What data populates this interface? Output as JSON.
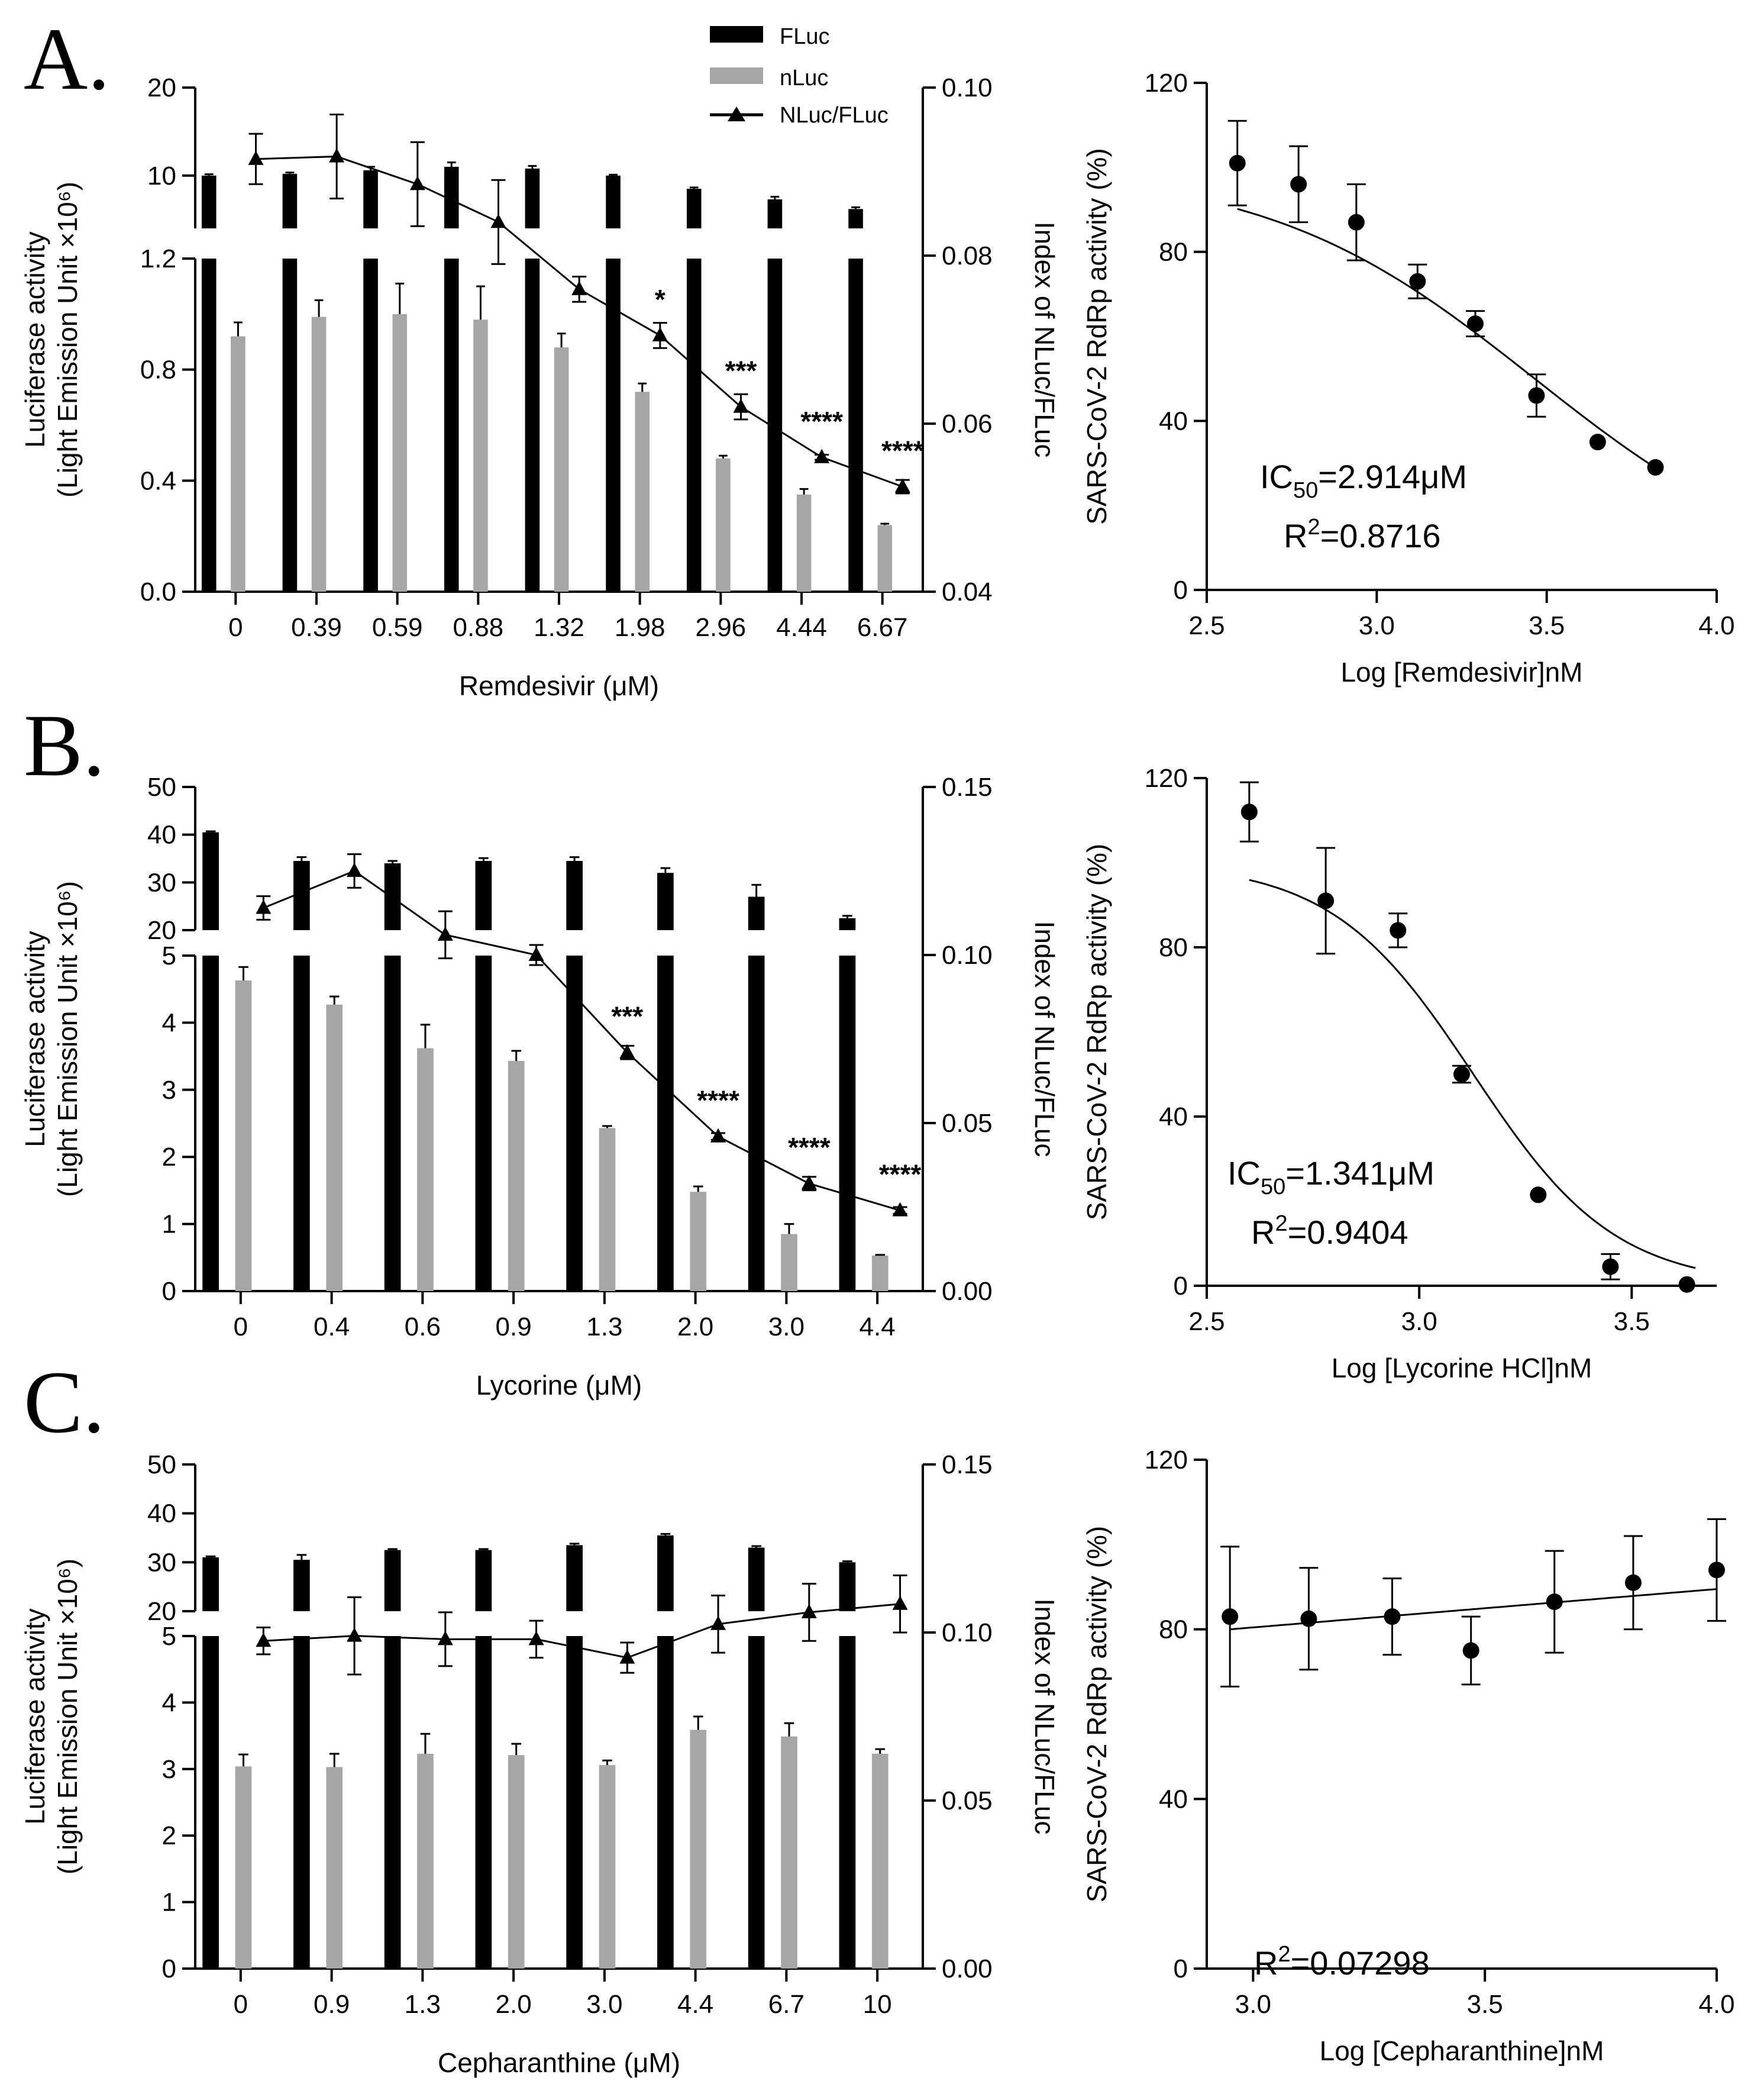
{
  "chart_data": [
    {
      "panel": "A.",
      "type": "bar",
      "xlabel": "Remdesivir (μM)",
      "categories": [
        "0",
        "0.39",
        "0.59",
        "0.88",
        "1.32",
        "1.98",
        "2.96",
        "4.44",
        "6.67"
      ],
      "ylabel_left": [
        "Luciferase activity",
        "(Light Emission Unit ×10⁶)"
      ],
      "ylabel_right": "Index of NLuc/FLuc",
      "y_lower": {
        "ticks": [
          0.0,
          0.4,
          0.8,
          1.2
        ],
        "tick_labels": [
          "0.0",
          "0.4",
          "0.8",
          "1.2"
        ],
        "ylim": [
          0,
          1.2
        ]
      },
      "y_upper": {
        "ticks": [
          10,
          20
        ],
        "tick_labels": [
          "10",
          "20"
        ],
        "ylim": [
          4,
          20
        ]
      },
      "y_right": {
        "ticks": [
          0.04,
          0.06,
          0.08,
          0.1
        ],
        "tick_labels": [
          "0.04",
          "0.06",
          "0.08",
          "0.10"
        ],
        "ylim": [
          0.04,
          0.1
        ]
      },
      "series": [
        {
          "name": "FLuc",
          "kind": "bar",
          "color": "#000000",
          "values": [
            10.0,
            10.2,
            10.6,
            11.0,
            10.8,
            10.0,
            8.5,
            7.3,
            6.2
          ],
          "errors": [
            0.15,
            0.15,
            0.4,
            0.5,
            0.3,
            0.1,
            0.15,
            0.3,
            0.2
          ]
        },
        {
          "name": "nLuc",
          "kind": "bar",
          "color": "#a6a6a6",
          "values": [
            0.92,
            0.99,
            1.0,
            0.98,
            0.88,
            0.72,
            0.48,
            0.35,
            0.24
          ],
          "errors": [
            0.05,
            0.06,
            0.11,
            0.12,
            0.05,
            0.03,
            0.01,
            0.02,
            0.005
          ]
        },
        {
          "name": "NLuc/FLuc",
          "kind": "line",
          "color": "#000000",
          "values": [
            0.0915,
            0.0918,
            0.0885,
            0.084,
            0.076,
            0.0705,
            0.062,
            0.056,
            0.0525
          ],
          "errors": [
            0.003,
            0.005,
            0.005,
            0.005,
            0.0015,
            0.0015,
            0.0015,
            0.0003,
            0.0008
          ]
        }
      ],
      "significance": [
        {
          "category": "1.98",
          "label": "*"
        },
        {
          "category": "2.96",
          "label": "***"
        },
        {
          "category": "4.44",
          "label": "****"
        },
        {
          "category": "6.67",
          "label": "****"
        }
      ],
      "legend": [
        "FLuc",
        "nLuc",
        "NLuc/FLuc"
      ]
    },
    {
      "panel": "A.",
      "type": "scatter",
      "xlabel": "Log [Remdesivir]nM",
      "ylabel": "SARS-CoV-2 RdRp activity (%)",
      "xlim": [
        2.5,
        4.0
      ],
      "ylim": [
        0,
        120
      ],
      "x_ticks": [
        "2.5",
        "3.0",
        "3.5",
        "4.0"
      ],
      "y_ticks": [
        "0",
        "40",
        "80",
        "120"
      ],
      "x": [
        2.59,
        2.77,
        2.94,
        3.12,
        3.29,
        3.47,
        3.65,
        3.82
      ],
      "y": [
        101,
        96,
        87,
        73,
        63,
        46,
        35,
        29
      ],
      "errors": [
        10,
        9,
        9,
        4,
        3,
        5,
        0.5,
        0.5
      ],
      "fit": {
        "top": 100,
        "bottom": 0,
        "logIC50": 3.4645,
        "hill": 1.1,
        "xrange": [
          2.59,
          3.82
        ]
      },
      "annotation_ic50": {
        "prefix": "IC",
        "sub": "50",
        "value": "=2.914μM"
      },
      "annotation_r2": {
        "prefix": "R",
        "sup": "2",
        "value": "=0.8716"
      }
    },
    {
      "panel": "B.",
      "type": "bar",
      "xlabel": "Lycorine (μM)",
      "categories": [
        "0",
        "0.4",
        "0.6",
        "0.9",
        "1.3",
        "2.0",
        "3.0",
        "4.4"
      ],
      "ylabel_left": [
        "Luciferase activity",
        "(Light Emission Unit ×10⁶)"
      ],
      "ylabel_right": "Index of NLuc/FLuc",
      "y_lower": {
        "ticks": [
          0,
          1,
          2,
          3,
          4,
          5
        ],
        "tick_labels": [
          "0",
          "1",
          "2",
          "3",
          "4",
          "5"
        ],
        "ylim": [
          0,
          5
        ]
      },
      "y_upper": {
        "ticks": [
          20,
          30,
          40,
          50
        ],
        "tick_labels": [
          "20",
          "30",
          "40",
          "50"
        ],
        "ylim": [
          20,
          50
        ]
      },
      "y_right": {
        "ticks": [
          0.0,
          0.05,
          0.1,
          0.15
        ],
        "tick_labels": [
          "0.00",
          "0.05",
          "0.10",
          "0.15"
        ],
        "ylim": [
          0,
          0.15
        ]
      },
      "series": [
        {
          "name": "FLuc",
          "kind": "bar",
          "color": "#000000",
          "values": [
            40.5,
            34.5,
            34.0,
            34.5,
            34.5,
            32.0,
            27.0,
            22.5
          ],
          "errors": [
            0.2,
            0.8,
            0.5,
            0.6,
            0.8,
            1.0,
            2.5,
            0.5
          ]
        },
        {
          "name": "nLuc",
          "kind": "bar",
          "color": "#a6a6a6",
          "values": [
            4.63,
            4.27,
            3.62,
            3.43,
            2.43,
            1.48,
            0.85,
            0.53
          ],
          "errors": [
            0.2,
            0.12,
            0.35,
            0.15,
            0.03,
            0.08,
            0.15,
            0.01
          ]
        },
        {
          "name": "NLuc/FLuc",
          "kind": "line",
          "color": "#000000",
          "values": [
            0.114,
            0.125,
            0.106,
            0.1,
            0.071,
            0.046,
            0.032,
            0.024
          ],
          "errors": [
            0.0035,
            0.005,
            0.007,
            0.003,
            0.002,
            0.001,
            0.002,
            0.001
          ]
        }
      ],
      "significance": [
        {
          "category": "1.3",
          "label": "***"
        },
        {
          "category": "2.0",
          "label": "****"
        },
        {
          "category": "3.0",
          "label": "****"
        },
        {
          "category": "4.4",
          "label": "****"
        }
      ]
    },
    {
      "panel": "B.",
      "type": "scatter",
      "xlabel": "Log [Lycorine HCl]nM",
      "ylabel": "SARS-CoV-2 RdRp activity (%)",
      "xlim": [
        2.5,
        3.7
      ],
      "ylim": [
        0,
        120
      ],
      "x_ticks": [
        "2.5",
        "3.0",
        "3.5"
      ],
      "y_ticks": [
        "0",
        "40",
        "80",
        "120"
      ],
      "x": [
        2.6,
        2.78,
        2.95,
        3.1,
        3.28,
        3.45,
        3.63
      ],
      "y": [
        112,
        91,
        84,
        50,
        21.5,
        4.5,
        0.3
      ],
      "errors": [
        7,
        12.5,
        4,
        2,
        0.5,
        3,
        0.3
      ],
      "fit": {
        "top": 100,
        "bottom": 0,
        "logIC50": 3.1274,
        "hill": 2.6,
        "xrange": [
          2.6,
          3.65
        ]
      },
      "annotation_ic50": {
        "prefix": "IC",
        "sub": "50",
        "value": "=1.341μM"
      },
      "annotation_r2": {
        "prefix": "R",
        "sup": "2",
        "value": "=0.9404"
      }
    },
    {
      "panel": "C.",
      "type": "bar",
      "xlabel": "Cepharanthine (μM)",
      "categories": [
        "0",
        "0.9",
        "1.3",
        "2.0",
        "3.0",
        "4.4",
        "6.7",
        "10"
      ],
      "ylabel_left": [
        "Luciferase activity",
        "(Light Emission Unit ×10⁶)"
      ],
      "ylabel_right": "Index of NLuc/FLuc",
      "y_lower": {
        "ticks": [
          0,
          1,
          2,
          3,
          4,
          5
        ],
        "tick_labels": [
          "0",
          "1",
          "2",
          "3",
          "4",
          "5"
        ],
        "ylim": [
          0,
          5
        ]
      },
      "y_upper": {
        "ticks": [
          20,
          30,
          40,
          50
        ],
        "tick_labels": [
          "20",
          "30",
          "40",
          "50"
        ],
        "ylim": [
          20,
          50
        ]
      },
      "y_right": {
        "ticks": [
          0.0,
          0.05,
          0.1,
          0.15
        ],
        "tick_labels": [
          "0.00",
          "0.05",
          "0.10",
          "0.15"
        ],
        "ylim": [
          0,
          0.15
        ]
      },
      "series": [
        {
          "name": "FLuc",
          "kind": "bar",
          "color": "#000000",
          "values": [
            31.0,
            30.5,
            32.5,
            32.5,
            33.5,
            35.5,
            33.0,
            30.0
          ],
          "errors": [
            0.2,
            1.0,
            0.2,
            0.2,
            0.3,
            0.3,
            0.3,
            0.2
          ]
        },
        {
          "name": "nLuc",
          "kind": "bar",
          "color": "#a6a6a6",
          "values": [
            3.04,
            3.03,
            3.23,
            3.21,
            3.06,
            3.59,
            3.49,
            3.23
          ],
          "errors": [
            0.18,
            0.2,
            0.3,
            0.17,
            0.07,
            0.2,
            0.2,
            0.07
          ]
        },
        {
          "name": "NLuc/FLuc",
          "kind": "line",
          "color": "#000000",
          "values": [
            0.0975,
            0.099,
            0.098,
            0.098,
            0.0925,
            0.1025,
            0.106,
            0.1085
          ],
          "errors": [
            0.004,
            0.0115,
            0.008,
            0.0055,
            0.0045,
            0.0085,
            0.0085,
            0.0085
          ]
        }
      ]
    },
    {
      "panel": "C.",
      "type": "scatter",
      "xlabel": "Log [Cepharanthine]nM",
      "ylabel": "SARS-CoV-2 RdRp activity (%)",
      "xlim": [
        2.9,
        4.0
      ],
      "ylim": [
        0,
        120
      ],
      "x_ticks": [
        "3.0",
        "3.5",
        "4.0"
      ],
      "y_ticks": [
        "0",
        "40",
        "80",
        "120"
      ],
      "x": [
        2.95,
        3.12,
        3.3,
        3.47,
        3.65,
        3.82,
        4.0
      ],
      "y": [
        83,
        82.5,
        83,
        75,
        86.5,
        91,
        94
      ],
      "errors": [
        16.5,
        12,
        9,
        8,
        12,
        11,
        12
      ],
      "fit": {
        "linear": [
          80,
          89.5
        ],
        "xrange": [
          2.95,
          4.0
        ]
      },
      "annotation_r2": {
        "prefix": "R",
        "sup": "2",
        "value": "=0.07298"
      }
    }
  ]
}
